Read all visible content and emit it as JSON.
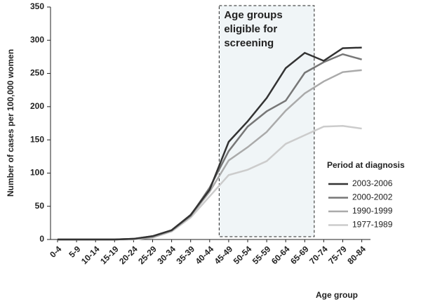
{
  "chart_data": {
    "type": "line",
    "ylabel": "Number of cases per 100,000 women",
    "xlabel": "Age group",
    "annotation_lines": [
      "Age groups",
      "eligible for",
      "screening"
    ],
    "legend_title": "Period at diagnosis",
    "categories": [
      "0-4",
      "5-9",
      "10-14",
      "15-19",
      "20-24",
      "25-29",
      "30-34",
      "35-39",
      "40-44",
      "45-49",
      "50-54",
      "55-59",
      "60-64",
      "65-69",
      "70-74",
      "75-79",
      "80-84"
    ],
    "series": [
      {
        "name": "2003-2006",
        "color": "#333333",
        "values": [
          0,
          0,
          0,
          0,
          1,
          5,
          14,
          37,
          75,
          147,
          178,
          213,
          258,
          281,
          269,
          288,
          289
        ]
      },
      {
        "name": "2000-2002",
        "color": "#777777",
        "values": [
          0,
          0,
          0,
          0,
          1,
          5,
          14,
          36,
          78,
          133,
          170,
          193,
          209,
          251,
          267,
          279,
          271
        ]
      },
      {
        "name": "1990-1999",
        "color": "#aaaaaa",
        "values": [
          0,
          0,
          0,
          0,
          1,
          3,
          13,
          35,
          72,
          119,
          139,
          162,
          194,
          220,
          238,
          252,
          255
        ]
      },
      {
        "name": "1977-1989",
        "color": "#cccccc",
        "values": [
          0,
          0,
          0,
          0,
          0,
          3,
          12,
          33,
          65,
          97,
          105,
          118,
          144,
          157,
          170,
          171,
          167
        ]
      }
    ],
    "ylim": [
      0,
      350
    ],
    "yticks": [
      0,
      50,
      100,
      150,
      200,
      250,
      300,
      350
    ],
    "grid": false
  }
}
